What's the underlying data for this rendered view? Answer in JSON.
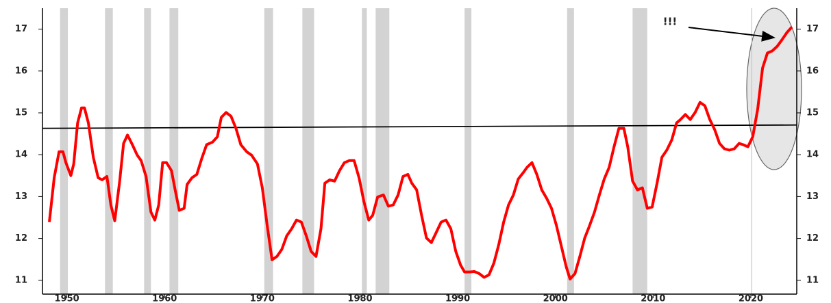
{
  "chart_data": {
    "type": "line",
    "x": [
      1948.2,
      1948.7,
      1949.2,
      1949.6,
      1949.9,
      1950.4,
      1950.7,
      1951.1,
      1951.5,
      1951.8,
      1952.2,
      1952.7,
      1953.2,
      1953.6,
      1954.1,
      1954.5,
      1954.9,
      1955.4,
      1955.8,
      1956.2,
      1956.7,
      1957.2,
      1957.6,
      1958.1,
      1958.6,
      1959.0,
      1959.4,
      1959.8,
      1960.2,
      1960.7,
      1961.1,
      1961.5,
      1962.0,
      1962.3,
      1962.8,
      1963.3,
      1963.8,
      1964.3,
      1964.9,
      1965.4,
      1965.8,
      1966.3,
      1966.8,
      1967.3,
      1967.8,
      1968.4,
      1968.9,
      1969.5,
      1970.0,
      1970.5,
      1971.0,
      1971.5,
      1972.0,
      1972.5,
      1973.0,
      1973.5,
      1974.0,
      1974.5,
      1975.0,
      1975.5,
      1976.0,
      1976.4,
      1976.9,
      1977.4,
      1977.9,
      1978.4,
      1978.9,
      1979.4,
      1979.9,
      1980.4,
      1980.9,
      1981.3,
      1981.8,
      1982.4,
      1982.9,
      1983.4,
      1983.9,
      1984.4,
      1984.9,
      1985.3,
      1985.8,
      1986.3,
      1986.8,
      1987.3,
      1987.8,
      1988.3,
      1988.8,
      1989.3,
      1989.8,
      1990.3,
      1990.7,
      1991.2,
      1991.7,
      1992.2,
      1992.7,
      1993.2,
      1993.7,
      1994.2,
      1994.7,
      1995.2,
      1995.7,
      1996.2,
      1996.7,
      1997.1,
      1997.6,
      1998.1,
      1998.6,
      1999.1,
      1999.6,
      2000.1,
      2000.6,
      2001.1,
      2001.5,
      2002.0,
      2002.5,
      2003.0,
      2003.5,
      2004.0,
      2004.5,
      2005.0,
      2005.5,
      2006.0,
      2006.5,
      2007.0,
      2007.4,
      2007.9,
      2008.4,
      2008.9,
      2009.4,
      2009.9,
      2010.4,
      2010.9,
      2011.4,
      2011.9,
      2012.4,
      2012.8,
      2013.3,
      2013.8,
      2014.3,
      2014.8,
      2015.3,
      2015.8,
      2016.3,
      2016.8,
      2017.3,
      2017.8,
      2018.3,
      2018.8,
      2019.2,
      2019.7,
      2020.2,
      2020.7,
      2021.2,
      2021.7,
      2022.2,
      2022.7,
      2023.2,
      2023.7,
      2024.2
    ],
    "values": [
      12.39,
      13.45,
      14.07,
      14.07,
      13.81,
      13.5,
      13.78,
      14.76,
      15.12,
      15.12,
      14.76,
      13.94,
      13.45,
      13.4,
      13.48,
      12.8,
      12.42,
      13.37,
      14.27,
      14.47,
      14.24,
      13.99,
      13.86,
      13.48,
      12.63,
      12.44,
      12.8,
      13.81,
      13.81,
      13.62,
      13.13,
      12.67,
      12.72,
      13.29,
      13.45,
      13.53,
      13.91,
      14.24,
      14.3,
      14.43,
      14.89,
      15.01,
      14.92,
      14.63,
      14.24,
      14.07,
      13.99,
      13.78,
      13.21,
      12.31,
      11.49,
      11.57,
      11.74,
      12.06,
      12.23,
      12.44,
      12.39,
      12.06,
      11.69,
      11.57,
      12.23,
      13.32,
      13.4,
      13.37,
      13.62,
      13.81,
      13.86,
      13.86,
      13.45,
      12.88,
      12.44,
      12.55,
      12.99,
      13.04,
      12.77,
      12.8,
      13.04,
      13.48,
      13.53,
      13.32,
      13.16,
      12.55,
      12.01,
      11.9,
      12.14,
      12.39,
      12.44,
      12.23,
      11.69,
      11.36,
      11.2,
      11.2,
      11.21,
      11.16,
      11.07,
      11.13,
      11.41,
      11.85,
      12.39,
      12.8,
      13.04,
      13.42,
      13.57,
      13.7,
      13.81,
      13.53,
      13.16,
      12.96,
      12.72,
      12.31,
      11.82,
      11.33,
      11.03,
      11.16,
      11.57,
      12.01,
      12.31,
      12.63,
      13.04,
      13.42,
      13.7,
      14.19,
      14.63,
      14.63,
      14.19,
      13.37,
      13.16,
      13.21,
      12.72,
      12.75,
      13.32,
      13.94,
      14.11,
      14.35,
      14.76,
      14.84,
      14.96,
      14.84,
      15.01,
      15.25,
      15.17,
      14.84,
      14.6,
      14.27,
      14.14,
      14.11,
      14.14,
      14.27,
      14.24,
      14.19,
      14.43,
      15.09,
      16.07,
      16.43,
      16.48,
      16.59,
      16.75,
      16.92,
      17.05
    ],
    "color": "#ff0000",
    "reference_line": {
      "x": [
        1947.5,
        2024.7
      ],
      "values": [
        14.63,
        14.71
      ],
      "color": "#000000"
    },
    "shaded_periods": [
      [
        1949.3,
        1950.1
      ],
      [
        1953.9,
        1954.7
      ],
      [
        1957.9,
        1958.6
      ],
      [
        1960.5,
        1961.4
      ],
      [
        1970.2,
        1971.1
      ],
      [
        1974.1,
        1975.3
      ],
      [
        1980.2,
        1980.7
      ],
      [
        1981.6,
        1983.0
      ],
      [
        1990.7,
        1991.4
      ],
      [
        2001.2,
        2001.9
      ],
      [
        2007.9,
        2009.4
      ]
    ],
    "shade_color": "#d3d3d3",
    "vertical_line": 2020.1,
    "annotation": "!!!",
    "xlim": [
      1947.5,
      2024.7
    ],
    "xticks": [
      1950,
      1960,
      1970,
      1980,
      1990,
      2000,
      2010,
      2020
    ],
    "ylim": [
      10.67,
      17.5
    ],
    "yticks": [
      11,
      12,
      13,
      14,
      15,
      16,
      17
    ]
  }
}
